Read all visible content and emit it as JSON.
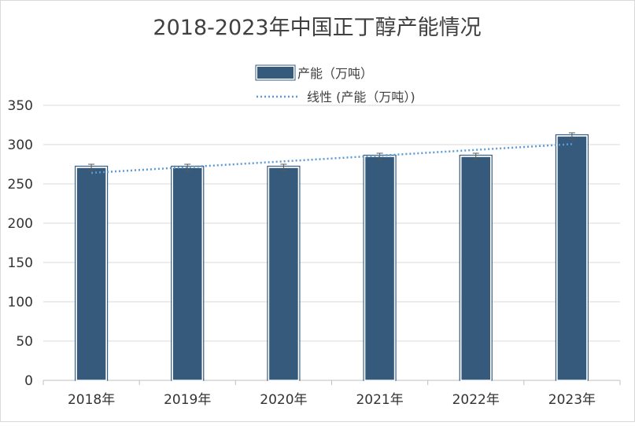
{
  "chart_data": {
    "type": "bar",
    "title": "2018-2023年中国正丁醇产能情况",
    "categories": [
      "2018年",
      "2019年",
      "2020年",
      "2021年",
      "2022年",
      "2023年"
    ],
    "series": [
      {
        "name": "产能（万吨）",
        "values": [
          271,
          271,
          271,
          285,
          285,
          311
        ],
        "color": "#355a7c"
      }
    ],
    "trendline": {
      "name": "线性 (产能（万吨）)",
      "type": "linear",
      "color": "#5b9bd5"
    },
    "error_bars": true,
    "ylim": [
      0,
      350
    ],
    "yticks": [
      0,
      50,
      100,
      150,
      200,
      250,
      300,
      350
    ],
    "grid": true,
    "legend_position": "top"
  }
}
